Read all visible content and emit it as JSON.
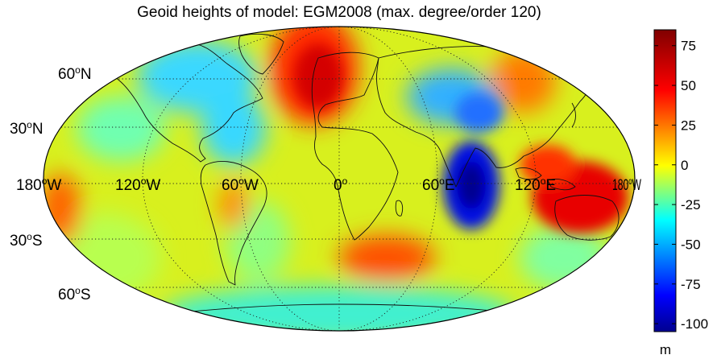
{
  "title": "Geoid heights of model: EGM2008 (max. degree/order 120)",
  "lat_labels": [
    {
      "key": "60N",
      "base": "60",
      "sup": "o",
      "dir": "N"
    },
    {
      "key": "30N",
      "base": "30",
      "sup": "o",
      "dir": "N"
    },
    {
      "key": "30S",
      "base": "30",
      "sup": "o",
      "dir": "S"
    },
    {
      "key": "60S",
      "base": "60",
      "sup": "o",
      "dir": "S"
    }
  ],
  "lon_labels": [
    {
      "key": "180W",
      "base": "180",
      "sup": "o",
      "dir": "W"
    },
    {
      "key": "120W",
      "base": "120",
      "sup": "o",
      "dir": "W"
    },
    {
      "key": "60W",
      "base": "60",
      "sup": "o",
      "dir": "W"
    },
    {
      "key": "0",
      "base": "0",
      "sup": "o",
      "dir": ""
    },
    {
      "key": "60E",
      "base": "60",
      "sup": "o",
      "dir": "E"
    },
    {
      "key": "120E",
      "base": "120",
      "sup": "o",
      "dir": "E"
    },
    {
      "key": "180W_right",
      "base": "180",
      "sup": "o",
      "dir": "W"
    }
  ],
  "colorbar": {
    "min": -105,
    "max": 85,
    "ticks": [
      "75",
      "50",
      "25",
      "0",
      "-25",
      "-50",
      "-75",
      "-100"
    ],
    "unit": "m",
    "colormap": [
      "#00008f",
      "#0000ff",
      "#00ffff",
      "#ffff00",
      "#ff0000",
      "#800000"
    ]
  },
  "background_color": "#ffffff"
}
